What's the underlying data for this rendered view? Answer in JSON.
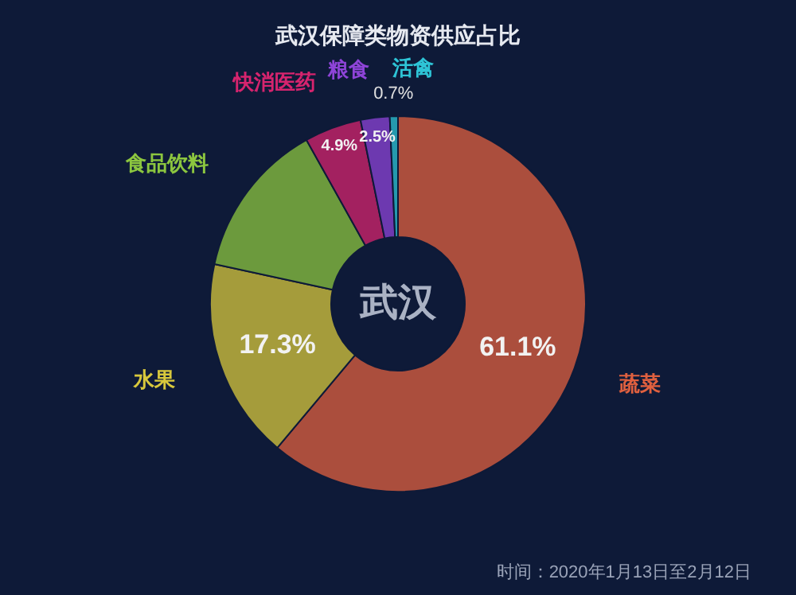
{
  "chart_data": {
    "type": "donut",
    "title": "武汉保障类物资供应占比",
    "categories": [
      "蔬菜",
      "水果",
      "食品饮料",
      "快消医药",
      "粮食",
      "活禽"
    ],
    "values": [
      61.1,
      17.3,
      13.5,
      4.9,
      2.5,
      0.7
    ],
    "value_labels": [
      "61.1%",
      "17.3%",
      null,
      "4.9%",
      "2.5%",
      "0.7%"
    ],
    "colors": [
      "#e0603f",
      "#d8c83c",
      "#8cc63f",
      "#d6246e",
      "#8e44d8",
      "#2ec4d6"
    ],
    "annotations": [
      "武汉",
      "时间：2020年1月13日至2月12日"
    ]
  }
}
